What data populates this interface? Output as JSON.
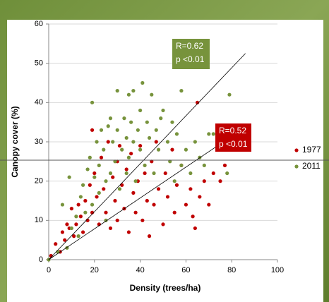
{
  "chart_data": {
    "type": "scatter",
    "x_label": "Density (trees/ha)",
    "y_label": "Canopy cover (%)",
    "xlim": [
      0,
      100
    ],
    "xticks": [
      0,
      20,
      40,
      60,
      80,
      100
    ],
    "ylim": [
      0,
      60
    ],
    "yticks": [
      0,
      10,
      20,
      30,
      40,
      50,
      60
    ],
    "grid": true,
    "legend": "right",
    "series": [
      {
        "name": "1977",
        "color": "#c00000",
        "x": [
          1,
          3,
          5,
          6,
          7,
          8,
          9,
          10,
          11,
          12,
          13,
          14,
          15,
          16,
          17,
          18,
          19,
          19,
          20,
          21,
          22,
          23,
          24,
          25,
          26,
          27,
          28,
          29,
          30,
          30,
          31,
          32,
          33,
          34,
          35,
          36,
          37,
          38,
          39,
          40,
          41,
          42,
          43,
          44,
          45,
          46,
          47,
          48,
          50,
          51,
          52,
          54,
          55,
          56,
          58,
          60,
          62,
          63,
          64,
          65,
          66,
          68,
          70,
          72,
          75,
          77
        ],
        "values": [
          1,
          4,
          2,
          7,
          5,
          9,
          8,
          13,
          6,
          9,
          14,
          11,
          7,
          15,
          10,
          19,
          33,
          12,
          22,
          16,
          9,
          26,
          18,
          12,
          30,
          8,
          21,
          15,
          25,
          10,
          29,
          19,
          13,
          23,
          7,
          27,
          17,
          12,
          20,
          29,
          10,
          22,
          15,
          6,
          25,
          14,
          30,
          18,
          9,
          22,
          16,
          28,
          12,
          19,
          24,
          14,
          18,
          11,
          8,
          40,
          16,
          20,
          14,
          22,
          20,
          24
        ]
      },
      {
        "name": "2011",
        "color": "#77933c",
        "x": [
          0,
          4,
          6,
          8,
          9,
          10,
          12,
          13,
          14,
          15,
          16,
          17,
          18,
          19,
          19,
          20,
          21,
          22,
          22,
          23,
          24,
          25,
          25,
          26,
          27,
          27,
          28,
          29,
          30,
          30,
          31,
          32,
          33,
          34,
          34,
          35,
          35,
          36,
          37,
          37,
          38,
          39,
          40,
          40,
          41,
          42,
          43,
          44,
          45,
          46,
          47,
          48,
          49,
          50,
          52,
          53,
          54,
          55,
          56,
          58,
          58,
          60,
          62,
          64,
          66,
          68,
          70,
          72,
          78,
          79
        ],
        "values": [
          0,
          2,
          14,
          3,
          21,
          8,
          11,
          6,
          16,
          19,
          12,
          23,
          26,
          40,
          14,
          21,
          30,
          24,
          17,
          33,
          28,
          10,
          20,
          34,
          36,
          22,
          30,
          25,
          43,
          33,
          18,
          28,
          36,
          31,
          22,
          42,
          26,
          35,
          30,
          43,
          20,
          33,
          28,
          38,
          45,
          24,
          35,
          31,
          42,
          22,
          33,
          28,
          36,
          38,
          30,
          25,
          35,
          20,
          32,
          43,
          24,
          28,
          22,
          30,
          26,
          24,
          32,
          32,
          22,
          42
        ]
      }
    ],
    "trendlines": [
      {
        "color": "#77933c",
        "x": [
          0,
          86
        ],
        "values": [
          0,
          52.5
        ]
      },
      {
        "color": "#c00000",
        "x": [
          0,
          84
        ],
        "values": [
          0,
          33
        ]
      }
    ],
    "annotations": [
      {
        "lines": [
          "R=0.62",
          "p <0.01"
        ],
        "color": "#77933c"
      },
      {
        "lines": [
          "R=0.52",
          "p <0.01"
        ],
        "color": "#c00000"
      }
    ]
  }
}
